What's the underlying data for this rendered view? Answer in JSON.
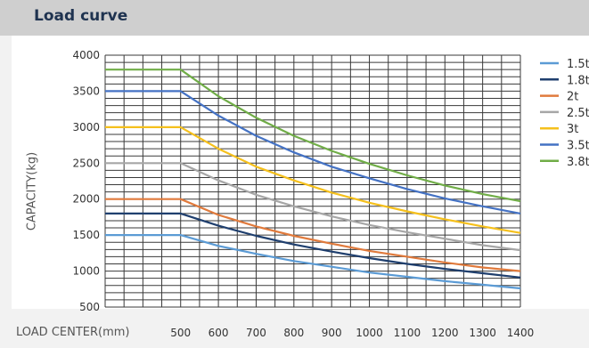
{
  "header": {
    "title": "Load curve"
  },
  "chart_data": {
    "type": "line",
    "xlabel": "LOAD CENTER(mm)",
    "ylabel": "CAPACITY(kg)",
    "xlim": [
      300,
      1400
    ],
    "ylim": [
      500,
      4000
    ],
    "x_ticks": [
      500,
      600,
      700,
      800,
      900,
      1000,
      1100,
      1200,
      1300,
      1400
    ],
    "y_ticks": [
      500,
      1000,
      1500,
      2000,
      2500,
      3000,
      3500,
      4000
    ],
    "grid": true,
    "legend_position": "right",
    "x": [
      300,
      500,
      600,
      700,
      800,
      900,
      1000,
      1100,
      1200,
      1300,
      1400
    ],
    "series": [
      {
        "name": "1.5t",
        "color": "#5b9bd5",
        "values": [
          1500,
          1500,
          1350,
          1240,
          1140,
          1060,
          980,
          920,
          860,
          810,
          760
        ]
      },
      {
        "name": "1.8t",
        "color": "#1f3f6e",
        "values": [
          1800,
          1800,
          1630,
          1490,
          1370,
          1270,
          1180,
          1100,
          1030,
          970,
          910
        ]
      },
      {
        "name": "2t",
        "color": "#e07a3c",
        "values": [
          2000,
          2000,
          1780,
          1620,
          1490,
          1380,
          1280,
          1200,
          1120,
          1050,
          1000
        ]
      },
      {
        "name": "2.5t",
        "color": "#a6a6a6",
        "values": [
          2500,
          2500,
          2260,
          2060,
          1900,
          1760,
          1640,
          1540,
          1450,
          1360,
          1290
        ]
      },
      {
        "name": "3t",
        "color": "#f5c01c",
        "values": [
          3000,
          3000,
          2700,
          2450,
          2260,
          2090,
          1950,
          1830,
          1720,
          1620,
          1530
        ]
      },
      {
        "name": "3.5t",
        "color": "#4472c4",
        "values": [
          3500,
          3500,
          3160,
          2880,
          2650,
          2450,
          2290,
          2140,
          2010,
          1900,
          1800
        ]
      },
      {
        "name": "3.8t",
        "color": "#70ad47",
        "values": [
          3800,
          3800,
          3430,
          3130,
          2880,
          2670,
          2490,
          2330,
          2190,
          2070,
          1970
        ]
      }
    ]
  }
}
